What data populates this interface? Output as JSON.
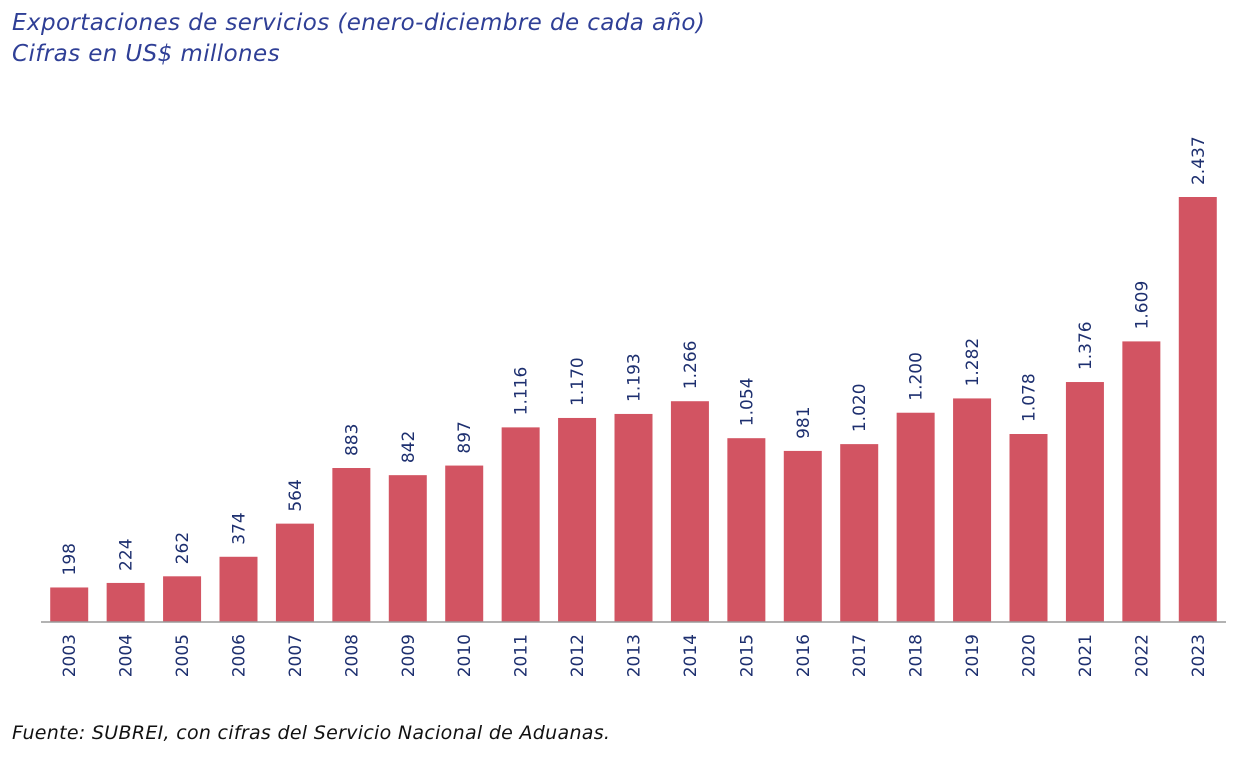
{
  "title": "Exportaciones de servicios (enero-diciembre de cada año)",
  "subtitle": "Cifras en US$ millones",
  "source": "Fuente: SUBREI, con cifras del Servicio Nacional de Aduanas.",
  "colors": {
    "bar": "#d25462",
    "title": "#2f3f96",
    "labels": "#1d2f6f",
    "axis": "#9a9a9a"
  },
  "chart_data": {
    "type": "bar",
    "categories": [
      "2003",
      "2004",
      "2005",
      "2006",
      "2007",
      "2008",
      "2009",
      "2010",
      "2011",
      "2012",
      "2013",
      "2014",
      "2015",
      "2016",
      "2017",
      "2018",
      "2019",
      "2020",
      "2021",
      "2022",
      "2023"
    ],
    "values": [
      198,
      224,
      262,
      374,
      564,
      883,
      842,
      897,
      1116,
      1170,
      1193,
      1266,
      1054,
      981,
      1020,
      1200,
      1282,
      1078,
      1376,
      1609,
      2437
    ],
    "data_labels": [
      "198",
      "224",
      "262",
      "374",
      "564",
      "883",
      "842",
      "897",
      "1.116",
      "1.170",
      "1.193",
      "1.266",
      "1.054",
      "981",
      "1.020",
      "1.200",
      "1.282",
      "1.078",
      "1.376",
      "1.609",
      "2.437"
    ],
    "xlabel": "",
    "ylabel": "",
    "ylim": [
      0,
      2437
    ],
    "grid": false,
    "legend": "none"
  }
}
